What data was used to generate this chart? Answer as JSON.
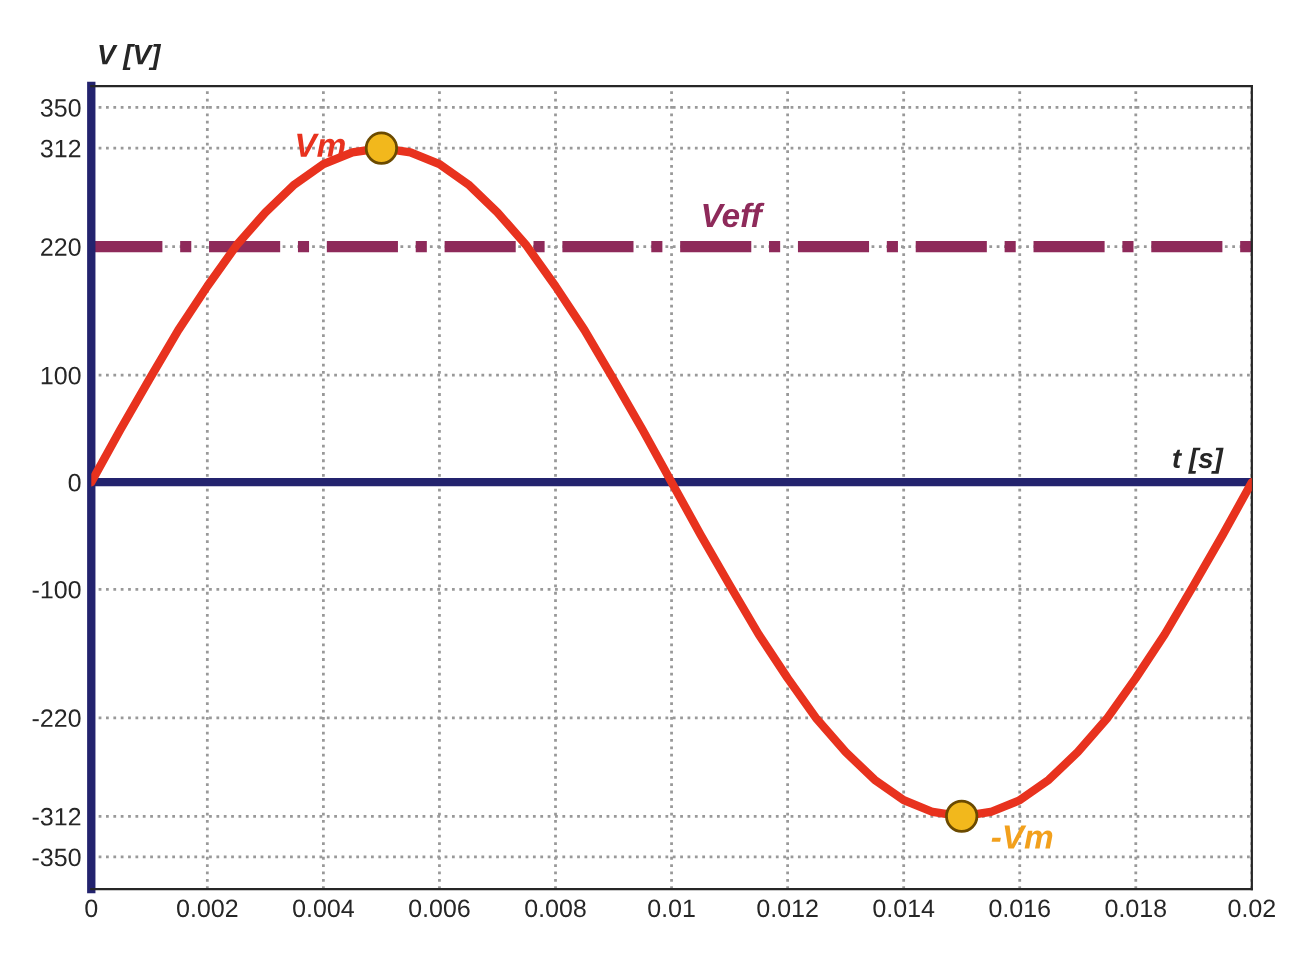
{
  "chart_data": {
    "type": "line",
    "xlabel": "t [s]",
    "ylabel": "V [V]",
    "xlim": [
      0,
      0.02
    ],
    "ylim": [
      -380,
      370
    ],
    "xticks": [
      0,
      0.002,
      0.004,
      0.006,
      0.008,
      0.01,
      0.012,
      0.014,
      0.016,
      0.018,
      0.02
    ],
    "yticks": [
      350,
      312,
      220,
      100,
      0,
      -100,
      -220,
      -312,
      -350
    ],
    "series": [
      {
        "color": "#e8321e",
        "x": [
          0,
          0.0005,
          0.001,
          0.0015,
          0.002,
          0.0025,
          0.003,
          0.0035,
          0.004,
          0.0045,
          0.005,
          0.0055,
          0.006,
          0.0065,
          0.007,
          0.0075,
          0.008,
          0.0085,
          0.009,
          0.0095,
          0.01,
          0.0105,
          0.011,
          0.0115,
          0.012,
          0.0125,
          0.013,
          0.0135,
          0.014,
          0.0145,
          0.015,
          0.0155,
          0.016,
          0.0165,
          0.017,
          0.0175,
          0.018,
          0.0185,
          0.019,
          0.0195,
          0.02
        ],
        "values": [
          0,
          49,
          96,
          142,
          183,
          221,
          252,
          278,
          297,
          308,
          312,
          308,
          297,
          278,
          252,
          221,
          183,
          142,
          96,
          49,
          0,
          -49,
          -96,
          -142,
          -183,
          -221,
          -252,
          -278,
          -297,
          -308,
          -312,
          -308,
          -297,
          -278,
          -252,
          -221,
          -183,
          -142,
          -96,
          -49,
          0
        ]
      },
      {
        "type": "scatter",
        "color": "#f2b81c",
        "x": [
          0.005,
          0.015
        ],
        "values": [
          312,
          -312
        ]
      }
    ],
    "ref_lines": [
      {
        "axis": "y",
        "value": 220,
        "label": "Veff",
        "color": "#8e2a5a",
        "line_style": "dashdot"
      },
      {
        "axis": "y",
        "value": 0,
        "color": "#23236e",
        "line_style": "solid"
      }
    ],
    "annotations": [
      {
        "text": "Vm",
        "x": 0.005,
        "y": 312
      },
      {
        "text": "-Vm",
        "x": 0.015,
        "y": -312
      }
    ],
    "grid": true
  }
}
